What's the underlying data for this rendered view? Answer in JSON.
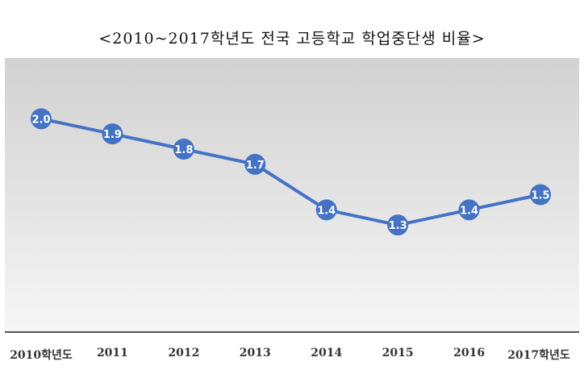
{
  "chart_data": {
    "type": "line",
    "title": "<2010~2017학년도 전국 고등학교 학업중단생 비율>",
    "categories": [
      "2010학년도",
      "2011",
      "2012",
      "2013",
      "2014",
      "2015",
      "2016",
      "2017학년도"
    ],
    "values": [
      2.0,
      1.9,
      1.8,
      1.7,
      1.4,
      1.3,
      1.4,
      1.5
    ],
    "value_labels": [
      "2.0",
      "1.9",
      "1.8",
      "1.7",
      "1.4",
      "1.3",
      "1.4",
      "1.5"
    ],
    "ylim": [
      0.6,
      2.4
    ],
    "grid": false,
    "colors": {
      "line": "#4472c4",
      "marker": "#4472c4",
      "label": "#ffffff"
    }
  }
}
